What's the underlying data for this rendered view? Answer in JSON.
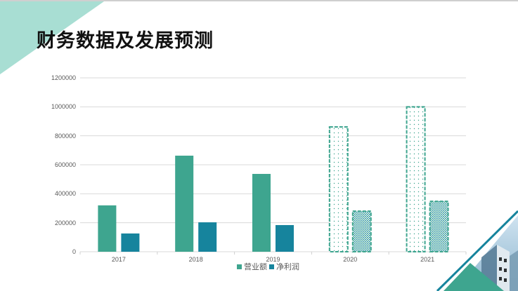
{
  "slide": {
    "title": "财务数据及发展预测"
  },
  "colors": {
    "revenue": "#3ea58f",
    "profit": "#16849d",
    "accent_light": "#a8ded3",
    "grid": "#d9d9d9",
    "axis_text": "#595959"
  },
  "chart_data": {
    "type": "bar",
    "title": "",
    "xlabel": "",
    "ylabel": "",
    "categories": [
      "2017",
      "2018",
      "2019",
      "2020",
      "2021"
    ],
    "series": [
      {
        "name": "营业额",
        "values": [
          320000,
          663000,
          537000,
          861000,
          1000000
        ],
        "forecast_from_index": 3
      },
      {
        "name": "净利润",
        "values": [
          126000,
          203000,
          184000,
          280000,
          348000
        ],
        "forecast_from_index": 3
      }
    ],
    "ylim": [
      0,
      1200000
    ],
    "yticks": [
      "0",
      "200000",
      "400000",
      "600000",
      "800000",
      "1000000",
      "1200000"
    ],
    "grid": true,
    "legend_position": "bottom",
    "annotations": "2020 and 2021 bars drawn as dashed-outline patterned (forecast) bars"
  },
  "legend": {
    "items": [
      "营业额",
      "净利润"
    ]
  }
}
